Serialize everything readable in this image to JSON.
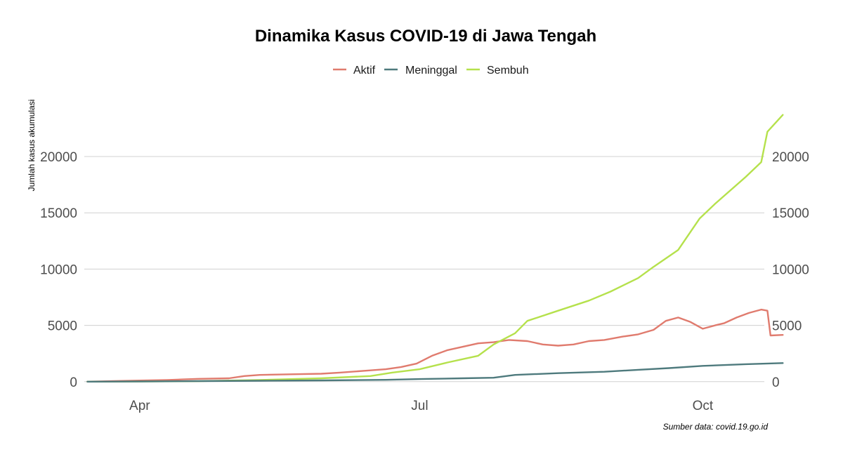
{
  "chart_data": {
    "type": "line",
    "title": "Dinamika Kasus COVID-19 di Jawa Tengah",
    "ylabel": "Jumlah kasus akumulasi",
    "xlabel": "",
    "caption": "Sumber data: covid.19.go.id",
    "legend_position": "top",
    "grid": "horizontal",
    "x_axis": {
      "type": "date",
      "range": [
        "2020-03-14",
        "2020-10-21"
      ],
      "ticks": [
        {
          "date": "2020-04-01",
          "label": "Apr"
        },
        {
          "date": "2020-07-01",
          "label": "Jul"
        },
        {
          "date": "2020-10-01",
          "label": "Oct"
        }
      ]
    },
    "y_axis": {
      "range": [
        -700,
        25800
      ],
      "ticks": [
        0,
        5000,
        10000,
        15000,
        20000
      ],
      "tick_labels": [
        "0",
        "5000",
        "10000",
        "15000",
        "20000"
      ],
      "secondary_axis": true
    },
    "series": [
      {
        "name": "Aktif",
        "color": "#e07b6e",
        "points": [
          [
            "2020-03-15",
            0
          ],
          [
            "2020-03-20",
            30
          ],
          [
            "2020-03-25",
            60
          ],
          [
            "2020-04-01",
            100
          ],
          [
            "2020-04-10",
            150
          ],
          [
            "2020-04-15",
            200
          ],
          [
            "2020-04-20",
            250
          ],
          [
            "2020-04-30",
            300
          ],
          [
            "2020-05-05",
            500
          ],
          [
            "2020-05-10",
            600
          ],
          [
            "2020-05-20",
            650
          ],
          [
            "2020-05-30",
            700
          ],
          [
            "2020-06-05",
            800
          ],
          [
            "2020-06-10",
            900
          ],
          [
            "2020-06-15",
            1000
          ],
          [
            "2020-06-20",
            1100
          ],
          [
            "2020-06-25",
            1300
          ],
          [
            "2020-06-30",
            1600
          ],
          [
            "2020-07-05",
            2300
          ],
          [
            "2020-07-10",
            2800
          ],
          [
            "2020-07-15",
            3100
          ],
          [
            "2020-07-20",
            3400
          ],
          [
            "2020-07-25",
            3500
          ],
          [
            "2020-07-30",
            3700
          ],
          [
            "2020-08-05",
            3600
          ],
          [
            "2020-08-10",
            3300
          ],
          [
            "2020-08-15",
            3200
          ],
          [
            "2020-08-20",
            3300
          ],
          [
            "2020-08-25",
            3600
          ],
          [
            "2020-08-30",
            3700
          ],
          [
            "2020-09-05",
            4000
          ],
          [
            "2020-09-10",
            4200
          ],
          [
            "2020-09-15",
            4600
          ],
          [
            "2020-09-19",
            5400
          ],
          [
            "2020-09-23",
            5700
          ],
          [
            "2020-09-27",
            5300
          ],
          [
            "2020-10-01",
            4700
          ],
          [
            "2020-10-05",
            5000
          ],
          [
            "2020-10-08",
            5200
          ],
          [
            "2020-10-12",
            5700
          ],
          [
            "2020-10-16",
            6100
          ],
          [
            "2020-10-20",
            6400
          ],
          [
            "2020-10-22",
            6300
          ],
          [
            "2020-10-23",
            4100
          ],
          [
            "2020-10-27",
            4150
          ]
        ]
      },
      {
        "name": "Meninggal",
        "color": "#4e7a7d",
        "points": [
          [
            "2020-03-15",
            0
          ],
          [
            "2020-04-01",
            20
          ],
          [
            "2020-04-20",
            50
          ],
          [
            "2020-05-10",
            80
          ],
          [
            "2020-05-30",
            110
          ],
          [
            "2020-06-20",
            160
          ],
          [
            "2020-07-01",
            230
          ],
          [
            "2020-07-15",
            300
          ],
          [
            "2020-07-25",
            350
          ],
          [
            "2020-08-01",
            600
          ],
          [
            "2020-08-15",
            750
          ],
          [
            "2020-08-30",
            880
          ],
          [
            "2020-09-10",
            1050
          ],
          [
            "2020-09-20",
            1200
          ],
          [
            "2020-10-01",
            1400
          ],
          [
            "2020-10-15",
            1550
          ],
          [
            "2020-10-27",
            1650
          ]
        ]
      },
      {
        "name": "Sembuh",
        "color": "#b5e14c",
        "points": [
          [
            "2020-03-15",
            0
          ],
          [
            "2020-04-01",
            10
          ],
          [
            "2020-04-20",
            40
          ],
          [
            "2020-05-10",
            150
          ],
          [
            "2020-05-30",
            300
          ],
          [
            "2020-06-15",
            500
          ],
          [
            "2020-06-22",
            800
          ],
          [
            "2020-07-01",
            1100
          ],
          [
            "2020-07-10",
            1700
          ],
          [
            "2020-07-20",
            2300
          ],
          [
            "2020-07-25",
            3300
          ],
          [
            "2020-08-01",
            4300
          ],
          [
            "2020-08-05",
            5400
          ],
          [
            "2020-08-15",
            6300
          ],
          [
            "2020-08-25",
            7200
          ],
          [
            "2020-09-01",
            8000
          ],
          [
            "2020-09-10",
            9200
          ],
          [
            "2020-09-15",
            10200
          ],
          [
            "2020-09-23",
            11700
          ],
          [
            "2020-09-30",
            14500
          ],
          [
            "2020-10-05",
            15800
          ],
          [
            "2020-10-15",
            18200
          ],
          [
            "2020-10-20",
            19500
          ],
          [
            "2020-10-22",
            22200
          ],
          [
            "2020-10-27",
            23700
          ]
        ]
      }
    ]
  }
}
